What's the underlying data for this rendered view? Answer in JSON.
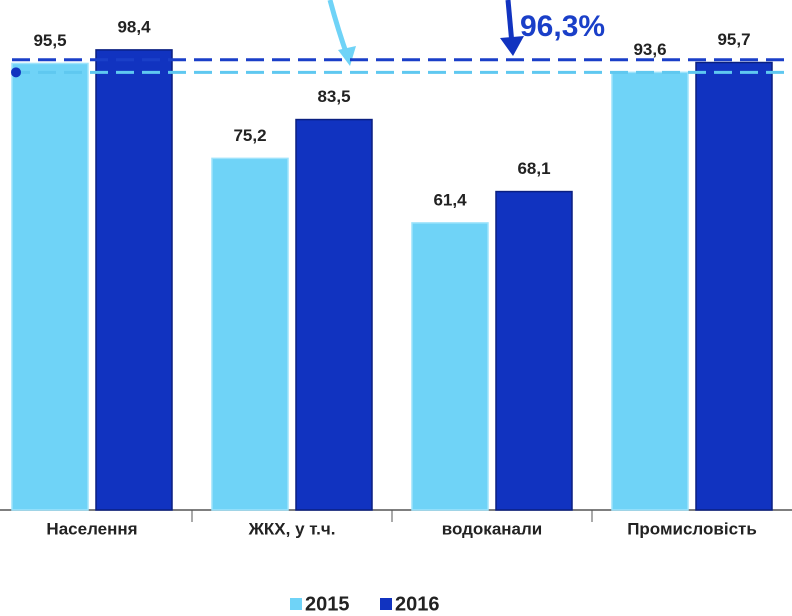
{
  "chart_data": {
    "type": "bar",
    "categories": [
      "Населення",
      "ЖКХ, у т.ч.",
      "водоканали",
      "Промисловість"
    ],
    "series": [
      {
        "name": "2015",
        "color": "#6fd3f7",
        "values": [
          95.5,
          75.2,
          61.4,
          93.6
        ],
        "value_labels": [
          "95,5",
          "75,2",
          "61,4",
          "93,6"
        ]
      },
      {
        "name": "2016",
        "color": "#1133c0",
        "values": [
          98.4,
          83.5,
          68.1,
          95.7
        ],
        "value_labels": [
          "98,4",
          "83,5",
          "68,1",
          "95,7"
        ]
      }
    ],
    "reference_lines": [
      {
        "value": 96.3,
        "label": "96,3%",
        "color": "#1a3fc8"
      },
      {
        "value": 93.6,
        "color": "#5fc8f0"
      }
    ],
    "ylim": [
      0,
      108
    ],
    "legend": "bottom"
  }
}
